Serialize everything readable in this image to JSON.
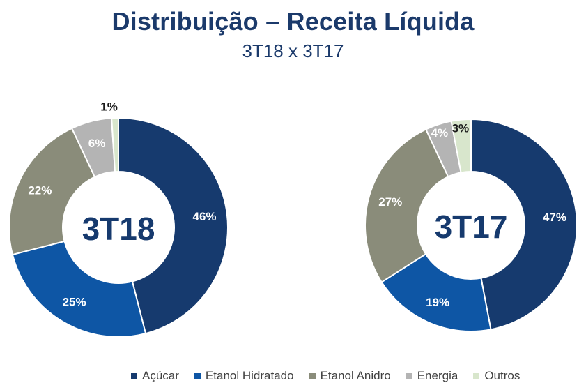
{
  "header": {
    "title": "Distribuição – Receita Líquida",
    "subtitle": "3T18 x 3T17"
  },
  "categories": [
    "Açúcar",
    "Etanol Hidratado",
    "Etanol Anidro",
    "Energia",
    "Outros"
  ],
  "colors": [
    "#163a6e",
    "#0e56a5",
    "#8a8c7a",
    "#b4b4b4",
    "#d8e6cc"
  ],
  "chart_data": [
    {
      "type": "pie",
      "center_label": "3T18",
      "categories": [
        "Açúcar",
        "Etanol Hidratado",
        "Etanol Anidro",
        "Energia",
        "Outros"
      ],
      "values": [
        46,
        25,
        22,
        6,
        1
      ],
      "labels": [
        "46%",
        "25%",
        "22%",
        "6%",
        "1%"
      ],
      "legend_position": "bottom"
    },
    {
      "type": "pie",
      "center_label": "3T17",
      "categories": [
        "Açúcar",
        "Etanol Hidratado",
        "Etanol Anidro",
        "Energia",
        "Outros"
      ],
      "values": [
        47,
        19,
        27,
        4,
        3
      ],
      "labels": [
        "47%",
        "19%",
        "27%",
        "4%",
        "3%"
      ],
      "legend_position": "bottom"
    }
  ]
}
